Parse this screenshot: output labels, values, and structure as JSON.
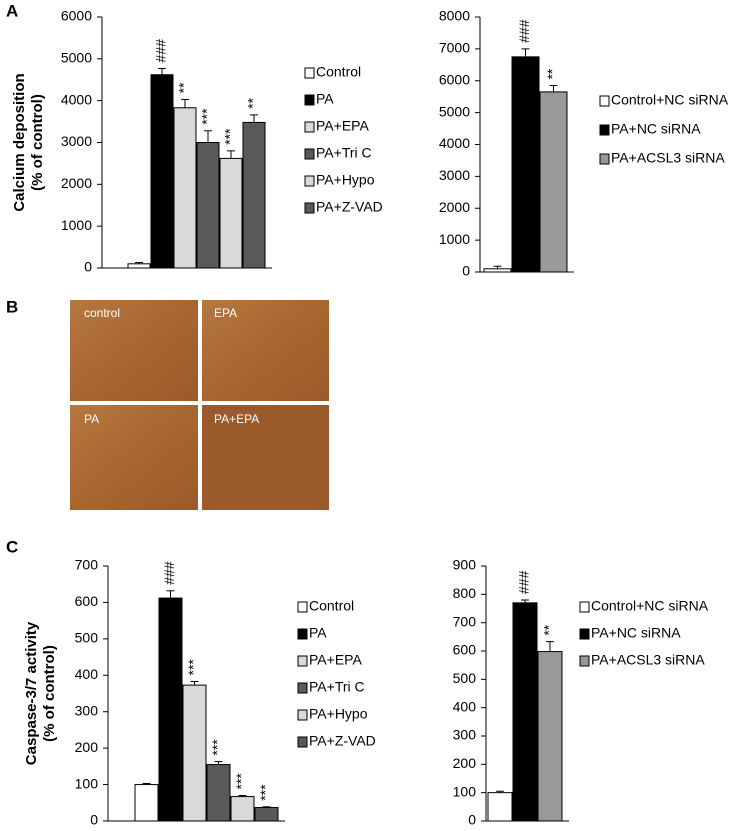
{
  "panel_labels": [
    "A",
    "B",
    "C"
  ],
  "micrographs": [
    "control",
    "EPA",
    "PA",
    "PA+EPA"
  ],
  "chart_data": [
    {
      "type": "bar",
      "ylabel": [
        "Calcium deposition",
        "(% of control)"
      ],
      "categories": [
        "Control",
        "PA",
        "PA+EPA",
        "PA+Tri C",
        "PA+Hypo",
        "PA+Z-VAD"
      ],
      "values": [
        100,
        4620,
        3830,
        3000,
        2620,
        3480
      ],
      "errors": [
        30,
        150,
        200,
        280,
        180,
        180
      ],
      "annotations": [
        null,
        "###",
        "**",
        "***",
        "***",
        "**"
      ],
      "colors": [
        "#ffffff",
        "#000000",
        "#d9d9d9",
        "#595959",
        "#d9d9d9",
        "#595959"
      ],
      "ylim": [
        0,
        6000
      ],
      "yticks": [
        0,
        1000,
        2000,
        3000,
        4000,
        5000,
        6000
      ]
    },
    {
      "type": "bar",
      "categories": [
        "Control+NC siRNA",
        "PA+NC siRNA",
        "PA+ACSL3 siRNA"
      ],
      "values": [
        100,
        6750,
        5650
      ],
      "errors": [
        80,
        250,
        200
      ],
      "annotations": [
        null,
        "###",
        "**"
      ],
      "colors": [
        "#ffffff",
        "#000000",
        "#999999"
      ],
      "ylim": [
        0,
        8000
      ],
      "yticks": [
        0,
        1000,
        2000,
        3000,
        4000,
        5000,
        6000,
        7000,
        8000
      ]
    },
    {
      "type": "bar",
      "ylabel": [
        "Caspase-3/7 activity",
        "(% of control)"
      ],
      "categories": [
        "Control",
        "PA",
        "PA+EPA",
        "PA+Tri C",
        "PA+Hypo",
        "PA+Z-VAD"
      ],
      "values": [
        100,
        612,
        373,
        155,
        67,
        37
      ],
      "errors": [
        3,
        20,
        10,
        8,
        3,
        2
      ],
      "annotations": [
        null,
        "###",
        "***",
        "***",
        "***",
        "***"
      ],
      "colors": [
        "#ffffff",
        "#000000",
        "#d9d9d9",
        "#595959",
        "#d9d9d9",
        "#595959"
      ],
      "ylim": [
        0,
        700
      ],
      "yticks": [
        0,
        100,
        200,
        300,
        400,
        500,
        600,
        700
      ]
    },
    {
      "type": "bar",
      "categories": [
        "Control+NC siRNA",
        "PA+NC siRNA",
        "PA+ACSL3 siRNA"
      ],
      "values": [
        100,
        770,
        598
      ],
      "errors": [
        5,
        10,
        35
      ],
      "annotations": [
        null,
        "###",
        "**"
      ],
      "colors": [
        "#ffffff",
        "#000000",
        "#999999"
      ],
      "ylim": [
        0,
        900
      ],
      "yticks": [
        0,
        100,
        200,
        300,
        400,
        500,
        600,
        700,
        800,
        900
      ]
    }
  ]
}
